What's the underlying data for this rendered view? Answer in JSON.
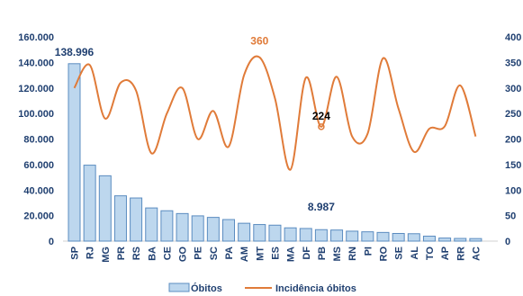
{
  "chart_data": {
    "type": "bar",
    "categories": [
      "SP",
      "RJ",
      "MG",
      "PR",
      "RS",
      "BA",
      "CE",
      "GO",
      "PE",
      "SC",
      "PA",
      "AM",
      "MT",
      "ES",
      "MA",
      "DF",
      "PB",
      "MS",
      "RN",
      "PI",
      "RO",
      "SE",
      "AL",
      "TO",
      "AP",
      "RR",
      "AC"
    ],
    "series": [
      {
        "name": "Óbitos",
        "axis": "left",
        "type": "bar",
        "color": "#bdd7ee",
        "values": [
          138996,
          59500,
          51200,
          35500,
          33800,
          26000,
          23800,
          21600,
          19800,
          18600,
          16900,
          14000,
          13000,
          12500,
          10400,
          9900,
          8987,
          8700,
          7800,
          7300,
          6800,
          6000,
          5800,
          3900,
          2400,
          2100,
          2000
        ]
      },
      {
        "name": "Incidência óbitos",
        "axis": "right",
        "type": "line",
        "color": "#e07b39",
        "values": [
          300,
          345,
          240,
          310,
          295,
          172,
          250,
          300,
          200,
          255,
          185,
          325,
          360,
          280,
          140,
          320,
          224,
          322,
          205,
          210,
          358,
          260,
          175,
          220,
          225,
          305,
          205
        ]
      }
    ],
    "yticks_left": [
      "0",
      "20.000",
      "40.000",
      "60.000",
      "80.000",
      "100.000",
      "120.000",
      "140.000",
      "160.000"
    ],
    "yticks_right": [
      "0",
      "50",
      "100",
      "150",
      "200",
      "250",
      "300",
      "350",
      "400"
    ],
    "ylim_left": [
      0,
      160000
    ],
    "ylim_right": [
      0,
      400
    ],
    "annotations": [
      {
        "text": "138.996",
        "series": "Óbitos",
        "category": "SP",
        "color": "#1f3f70"
      },
      {
        "text": "360",
        "series": "Incidência óbitos",
        "category": "MT",
        "color": "#e07b39"
      },
      {
        "text": "224",
        "series": "Incidência óbitos",
        "category": "PB",
        "color": "#000000"
      },
      {
        "text": "8.987",
        "series": "Óbitos",
        "category": "PB",
        "color": "#1f3f70"
      }
    ],
    "legend_position": "bottom",
    "grid": false
  }
}
